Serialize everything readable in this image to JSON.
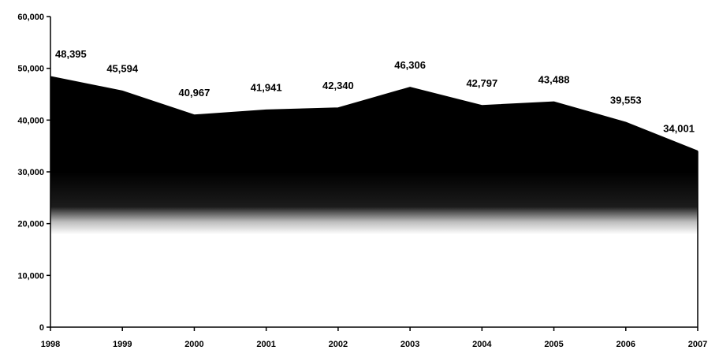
{
  "chart_data": {
    "type": "area",
    "title": "",
    "xlabel": "",
    "ylabel": "",
    "categories": [
      "1998",
      "1999",
      "2000",
      "2001",
      "2002",
      "2003",
      "2004",
      "2005",
      "2006",
      "2007"
    ],
    "values": [
      48395,
      45594,
      40967,
      41941,
      42340,
      46306,
      42797,
      43488,
      39553,
      34001
    ],
    "data_labels": [
      "48,395",
      "45,594",
      "40,967",
      "41,941",
      "42,340",
      "46,306",
      "42,797",
      "43,488",
      "39,553",
      "34,001"
    ],
    "ylim": [
      0,
      60000
    ],
    "y_ticks": [
      0,
      10000,
      20000,
      30000,
      40000,
      50000,
      60000
    ],
    "y_tick_labels": [
      "0",
      "10,000",
      "20,000",
      "30,000",
      "40,000",
      "50,000",
      "60,000"
    ],
    "grid": false,
    "legend": "none",
    "fill": "gradient black (top) to white (bottom)",
    "colors": {
      "fill_top": "#000000",
      "fill_bottom": "#ffffff",
      "axis": "#000000"
    }
  }
}
